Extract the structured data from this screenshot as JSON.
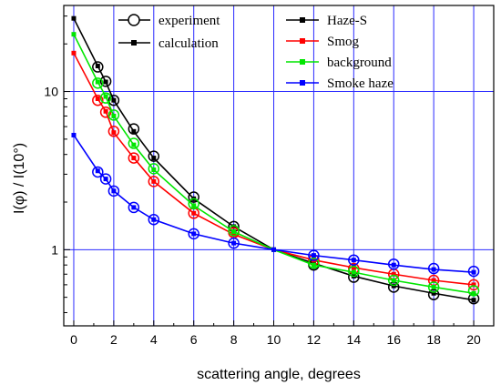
{
  "chart_data": {
    "type": "line",
    "title": "",
    "xlabel": "scattering angle, degrees",
    "ylabel": "I(φ) / I(10°)",
    "xlim": [
      -0.5,
      21
    ],
    "ylim": [
      0.33,
      35
    ],
    "yscale": "log",
    "grid": true,
    "x_ticks": [
      0,
      2,
      4,
      6,
      8,
      10,
      12,
      14,
      16,
      18,
      20
    ],
    "x_tick_labels": [
      "0",
      "2",
      "4",
      "6",
      "8",
      "10",
      "12",
      "14",
      "16",
      "18",
      "20"
    ],
    "y_ticks": [
      1,
      10
    ],
    "y_tick_labels": [
      "1",
      "10"
    ],
    "style_legend": [
      {
        "label": "experiment",
        "marker": "open-circle"
      },
      {
        "label": "calculation",
        "marker": "filled-square"
      }
    ],
    "series_legend_position": "top-right",
    "series": [
      {
        "name": "Haze-S",
        "color": "#000000",
        "calc_x": [
          0,
          1.2,
          1.6,
          2,
          3,
          4,
          6,
          8,
          10,
          12,
          14,
          16,
          18,
          20
        ],
        "calc_y": [
          29,
          14.5,
          11.5,
          8.8,
          5.6,
          3.8,
          2.1,
          1.4,
          1.0,
          0.82,
          0.68,
          0.59,
          0.53,
          0.48
        ],
        "exp_x": [
          1.2,
          1.6,
          2,
          3,
          4,
          6,
          8,
          12,
          14,
          16,
          18,
          20
        ],
        "exp_y": [
          14.3,
          11.6,
          8.8,
          5.8,
          3.9,
          2.15,
          1.4,
          0.8,
          0.67,
          0.58,
          0.52,
          0.49
        ]
      },
      {
        "name": "Smog",
        "color": "#ff0000",
        "calc_x": [
          0,
          1.2,
          1.6,
          2,
          3,
          4,
          6,
          8,
          10,
          12,
          14,
          16,
          18,
          20
        ],
        "calc_y": [
          17.5,
          9.0,
          7.5,
          5.5,
          3.8,
          2.7,
          1.7,
          1.25,
          1.0,
          0.86,
          0.77,
          0.7,
          0.64,
          0.6
        ],
        "exp_x": [
          1.2,
          1.6,
          2,
          3,
          4,
          6,
          8,
          12,
          14,
          16,
          18,
          20
        ],
        "exp_y": [
          8.8,
          7.4,
          5.6,
          3.8,
          2.7,
          1.7,
          1.28,
          0.86,
          0.76,
          0.7,
          0.64,
          0.6
        ]
      },
      {
        "name": "background",
        "color": "#00e600",
        "calc_x": [
          0,
          1.2,
          1.6,
          2,
          3,
          4,
          6,
          8,
          10,
          12,
          14,
          16,
          18,
          20
        ],
        "calc_y": [
          23,
          11.5,
          9.3,
          7.0,
          4.6,
          3.2,
          1.9,
          1.3,
          1.0,
          0.8,
          0.72,
          0.64,
          0.58,
          0.53
        ],
        "exp_x": [
          1.2,
          1.6,
          2,
          3,
          4,
          6,
          8,
          12,
          14,
          16,
          18,
          20
        ],
        "exp_y": [
          11.3,
          9.1,
          7.1,
          4.7,
          3.25,
          1.95,
          1.32,
          0.82,
          0.73,
          0.64,
          0.58,
          0.55
        ]
      },
      {
        "name": "Smoke haze",
        "color": "#0000ff",
        "calc_x": [
          0,
          1.2,
          1.6,
          2,
          3,
          4,
          6,
          8,
          10,
          12,
          14,
          16,
          18,
          20
        ],
        "calc_y": [
          5.3,
          3.15,
          2.8,
          2.35,
          1.85,
          1.55,
          1.26,
          1.1,
          1.0,
          0.92,
          0.86,
          0.8,
          0.75,
          0.72
        ],
        "exp_x": [
          1.2,
          1.6,
          2,
          3,
          4,
          6,
          8,
          12,
          14,
          16,
          18,
          20
        ],
        "exp_y": [
          3.1,
          2.8,
          2.35,
          1.85,
          1.55,
          1.26,
          1.1,
          0.92,
          0.86,
          0.81,
          0.76,
          0.73
        ]
      }
    ]
  }
}
